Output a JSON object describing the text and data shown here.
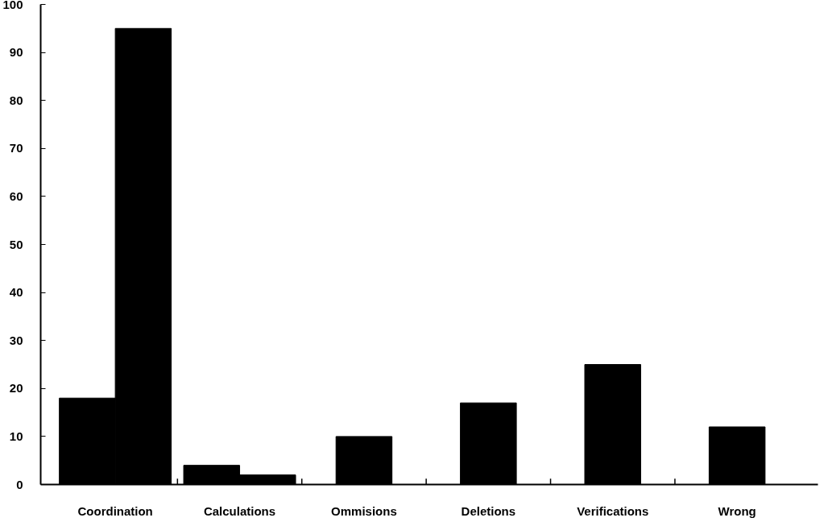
{
  "chart_data": {
    "type": "bar",
    "categories": [
      "Coordination",
      "Calculations",
      "Ommisions",
      "Deletions",
      "Verifications",
      "Wrong"
    ],
    "series": [
      {
        "color": "#000000",
        "values": [
          18,
          4,
          10,
          17,
          25,
          12
        ]
      },
      {
        "color": "#000000",
        "values": [
          95,
          2,
          null,
          null,
          null,
          null
        ]
      }
    ],
    "ylim": [
      0,
      100
    ],
    "yticks": [
      0,
      10,
      20,
      30,
      40,
      50,
      60,
      70,
      80,
      90,
      100
    ],
    "grid": false
  }
}
